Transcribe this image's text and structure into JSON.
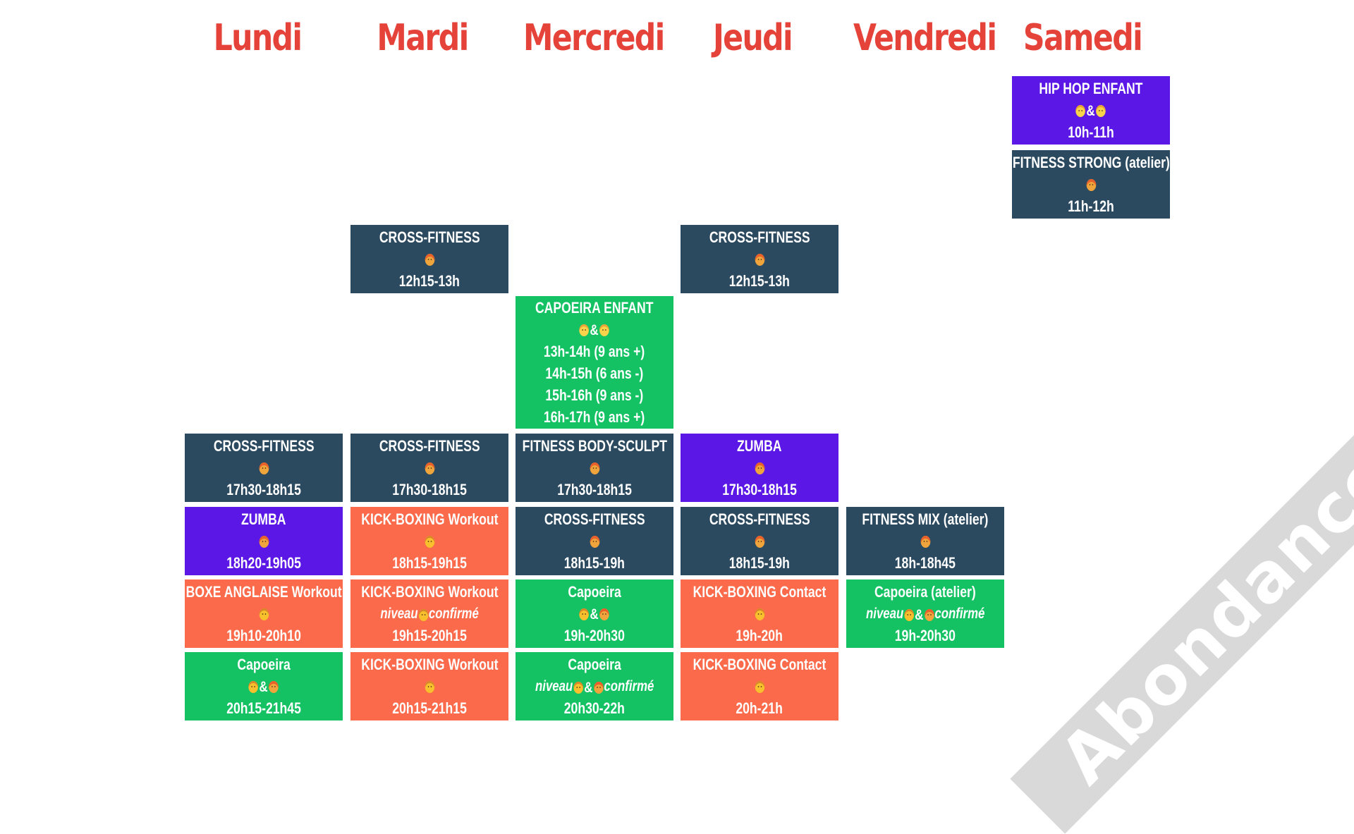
{
  "days": [
    "Lundi",
    "Mardi",
    "Mercredi",
    "Jeudi",
    "Vendredi",
    "Samedi"
  ],
  "watermark": "Abondance",
  "colors": {
    "day_title": "#e5423a",
    "dark": "#2c4a5f",
    "purple": "#5a17e6",
    "green": "#14c263",
    "orange": "#fb6a4a"
  },
  "classes": [
    {
      "id": "sam-hiphop",
      "day": "Samedi",
      "color": "purple",
      "title": "HIP HOP ENFANT",
      "audience": [
        "k",
        "&",
        "k"
      ],
      "lines": [
        "10h-11h"
      ]
    },
    {
      "id": "sam-fitness-strong",
      "day": "Samedi",
      "color": "dark",
      "title": "FITNESS STRONG (atelier)",
      "audience": [
        "f"
      ],
      "lines": [
        "11h-12h"
      ]
    },
    {
      "id": "mar-cross-midi",
      "day": "Mardi",
      "color": "dark",
      "title": "CROSS-FITNESS",
      "audience": [
        "f"
      ],
      "lines": [
        "12h15-13h"
      ]
    },
    {
      "id": "jeu-cross-midi",
      "day": "Jeudi",
      "color": "dark",
      "title": "CROSS-FITNESS",
      "audience": [
        "f"
      ],
      "lines": [
        "12h15-13h"
      ]
    },
    {
      "id": "mer-capoeira-enfant",
      "day": "Mercredi",
      "color": "green",
      "title": "CAPOEIRA ENFANT",
      "audience": [
        "k",
        "&",
        "k"
      ],
      "lines": [
        "13h-14h (9 ans +)",
        "14h-15h (6 ans -)",
        "15h-16h (9 ans -)",
        "16h-17h (9 ans +)"
      ]
    },
    {
      "id": "lun-cross",
      "day": "Lundi",
      "color": "dark",
      "title": "CROSS-FITNESS",
      "audience": [
        "f"
      ],
      "lines": [
        "17h30-18h15"
      ]
    },
    {
      "id": "mar-cross",
      "day": "Mardi",
      "color": "dark",
      "title": "CROSS-FITNESS",
      "audience": [
        "f"
      ],
      "lines": [
        "17h30-18h15"
      ]
    },
    {
      "id": "mer-body-sculpt",
      "day": "Mercredi",
      "color": "dark",
      "title": "FITNESS BODY-SCULPT",
      "audience": [
        "f"
      ],
      "lines": [
        "17h30-18h15"
      ]
    },
    {
      "id": "jeu-zumba",
      "day": "Jeudi",
      "color": "purple",
      "title": "ZUMBA",
      "audience": [
        "f"
      ],
      "lines": [
        "17h30-18h15"
      ]
    },
    {
      "id": "lun-zumba",
      "day": "Lundi",
      "color": "purple",
      "title": "ZUMBA",
      "audience": [
        "f"
      ],
      "lines": [
        "18h20-19h05"
      ]
    },
    {
      "id": "mar-kick-workout-1",
      "day": "Mardi",
      "color": "orange",
      "title": "KICK-BOXING Workout",
      "audience": [
        "m"
      ],
      "lines": [
        "18h15-19h15"
      ]
    },
    {
      "id": "mer-cross",
      "day": "Mercredi",
      "color": "dark",
      "title": "CROSS-FITNESS",
      "audience": [
        "f"
      ],
      "lines": [
        "18h15-19h"
      ]
    },
    {
      "id": "jeu-cross",
      "day": "Jeudi",
      "color": "dark",
      "title": "CROSS-FITNESS",
      "audience": [
        "f"
      ],
      "lines": [
        "18h15-19h"
      ]
    },
    {
      "id": "ven-fitness-mix",
      "day": "Vendredi",
      "color": "dark",
      "title": "FITNESS MIX (atelier)",
      "audience": [
        "f"
      ],
      "lines": [
        "18h-18h45"
      ]
    },
    {
      "id": "lun-boxe-anglaise",
      "day": "Lundi",
      "color": "orange",
      "title": "BOXE ANGLAISE Workout",
      "audience": [
        "m"
      ],
      "lines": [
        "19h10-20h10"
      ]
    },
    {
      "id": "mar-kick-workout-2",
      "day": "Mardi",
      "color": "orange",
      "title": "KICK-BOXING Workout",
      "audience": [
        "niveau",
        "m",
        "confirmé"
      ],
      "lines": [
        "19h15-20h15"
      ]
    },
    {
      "id": "mer-capoeira",
      "day": "Mercredi",
      "color": "green",
      "title": "Capoeira",
      "audience": [
        "m",
        "&",
        "f"
      ],
      "lines": [
        "19h-20h30"
      ]
    },
    {
      "id": "jeu-kick-contact-1",
      "day": "Jeudi",
      "color": "orange",
      "title": "KICK-BOXING Contact",
      "audience": [
        "m"
      ],
      "lines": [
        "19h-20h"
      ]
    },
    {
      "id": "ven-capoeira-atelier",
      "day": "Vendredi",
      "color": "green",
      "title": "Capoeira (atelier)",
      "audience": [
        "niveau",
        "m",
        "&",
        "f",
        "confirmé"
      ],
      "lines": [
        "19h-20h30"
      ]
    },
    {
      "id": "lun-capoeira",
      "day": "Lundi",
      "color": "green",
      "title": "Capoeira",
      "audience": [
        "m",
        "&",
        "f"
      ],
      "lines": [
        "20h15-21h45"
      ]
    },
    {
      "id": "mar-kick-workout-3",
      "day": "Mardi",
      "color": "orange",
      "title": "KICK-BOXING Workout",
      "audience": [
        "m"
      ],
      "lines": [
        "20h15-21h15"
      ]
    },
    {
      "id": "mer-capoeira-confirme",
      "day": "Mercredi",
      "color": "green",
      "title": "Capoeira",
      "audience": [
        "niveau",
        "m",
        "&",
        "f",
        "confirmé"
      ],
      "lines": [
        "20h30-22h"
      ]
    },
    {
      "id": "jeu-kick-contact-2",
      "day": "Jeudi",
      "color": "orange",
      "title": "KICK-BOXING Contact",
      "audience": [
        "m"
      ],
      "lines": [
        "20h-21h"
      ]
    }
  ]
}
